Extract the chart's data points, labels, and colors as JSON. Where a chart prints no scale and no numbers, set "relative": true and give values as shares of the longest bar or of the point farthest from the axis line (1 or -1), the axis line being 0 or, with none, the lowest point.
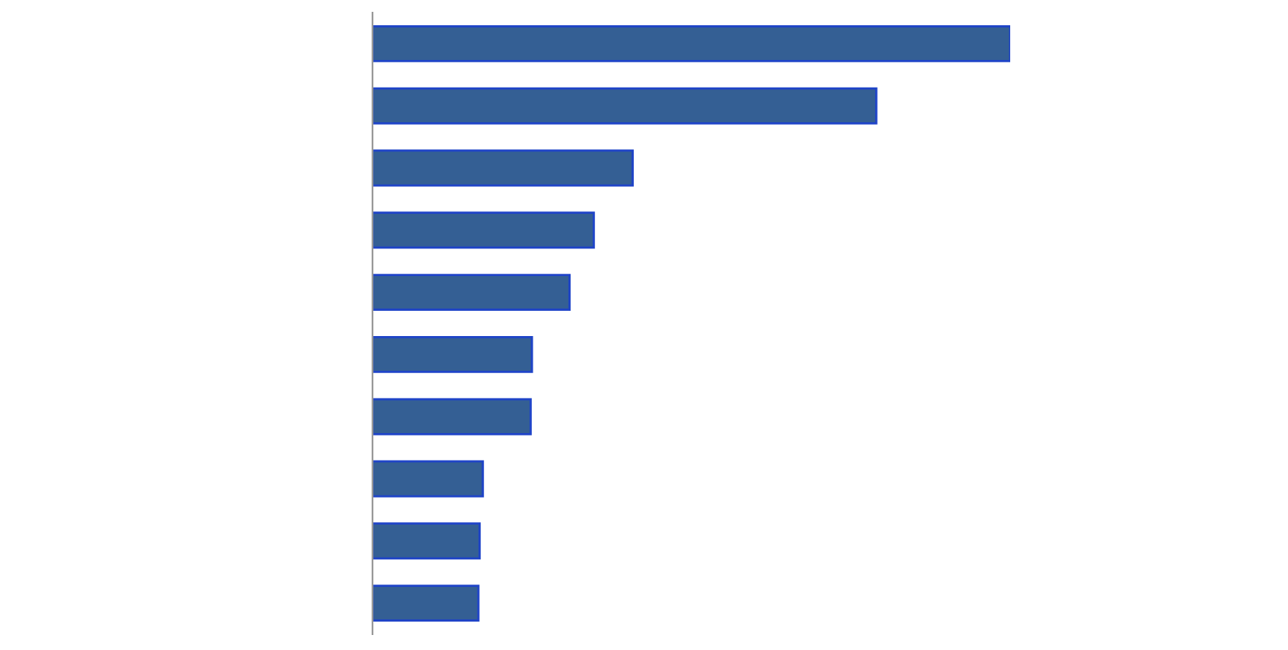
{
  "chart_data": {
    "type": "bar",
    "orientation": "horizontal",
    "relative": true,
    "categories": [
      null,
      null,
      null,
      null,
      null,
      null,
      null,
      null,
      null,
      null
    ],
    "values": [
      1,
      0.79,
      0.408,
      0.347,
      0.309,
      0.25,
      0.248,
      0.173,
      0.168,
      0.166
    ],
    "color": "#345f94",
    "grid": false,
    "legend": false
  }
}
